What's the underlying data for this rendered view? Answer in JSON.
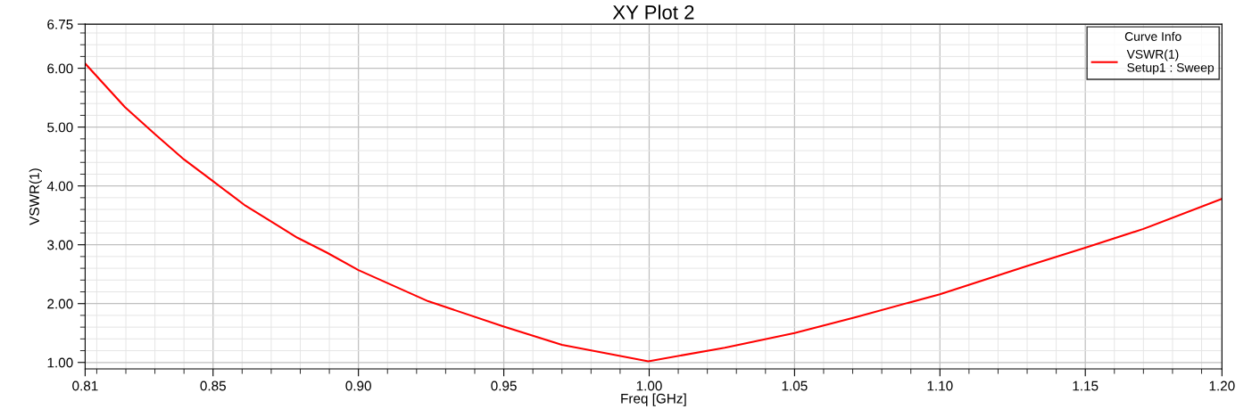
{
  "chart_data": {
    "type": "line",
    "title": "XY Plot 2",
    "xlabel": "Freq [GHz]",
    "ylabel": "VSWR(1)",
    "legend_title": "Curve Info",
    "xlim": [
      0.806,
      1.197
    ],
    "ylim": [
      0.89,
      6.75
    ],
    "xticks": [
      {
        "value": 0.806,
        "label": "0.81"
      },
      {
        "value": 0.85,
        "label": "0.85"
      },
      {
        "value": 0.9,
        "label": "0.90"
      },
      {
        "value": 0.95,
        "label": "0.95"
      },
      {
        "value": 1.0,
        "label": "1.00"
      },
      {
        "value": 1.05,
        "label": "1.05"
      },
      {
        "value": 1.1,
        "label": "1.10"
      },
      {
        "value": 1.15,
        "label": "1.15"
      },
      {
        "value": 1.197,
        "label": "1.20"
      }
    ],
    "yticks": [
      {
        "value": 1,
        "label": "1.00"
      },
      {
        "value": 2,
        "label": "2.00"
      },
      {
        "value": 3,
        "label": "3.00"
      },
      {
        "value": 4,
        "label": "4.00"
      },
      {
        "value": 5,
        "label": "5.00"
      },
      {
        "value": 6,
        "label": "6.00"
      },
      {
        "value": 6.75,
        "label": "6.75"
      }
    ],
    "grid": true,
    "legend": "top right",
    "marker": "none",
    "line_style": "solid",
    "series": [
      {
        "name": "VSWR(1)\nSetup1 : Sweep",
        "color": "#ff0000",
        "x": [
          0.806,
          0.8197,
          0.83,
          0.84,
          0.85,
          0.8607,
          0.879,
          0.889,
          0.9,
          0.924,
          0.95,
          0.97,
          0.9997,
          1.026,
          1.05,
          1.071,
          1.1,
          1.13,
          1.15,
          1.17,
          1.197
        ],
        "values": [
          6.08,
          5.34,
          4.88,
          4.45,
          4.08,
          3.68,
          3.12,
          2.87,
          2.57,
          2.04,
          1.61,
          1.3,
          1.02,
          1.25,
          1.5,
          1.77,
          2.16,
          2.64,
          2.95,
          3.27,
          3.78
        ]
      }
    ]
  }
}
